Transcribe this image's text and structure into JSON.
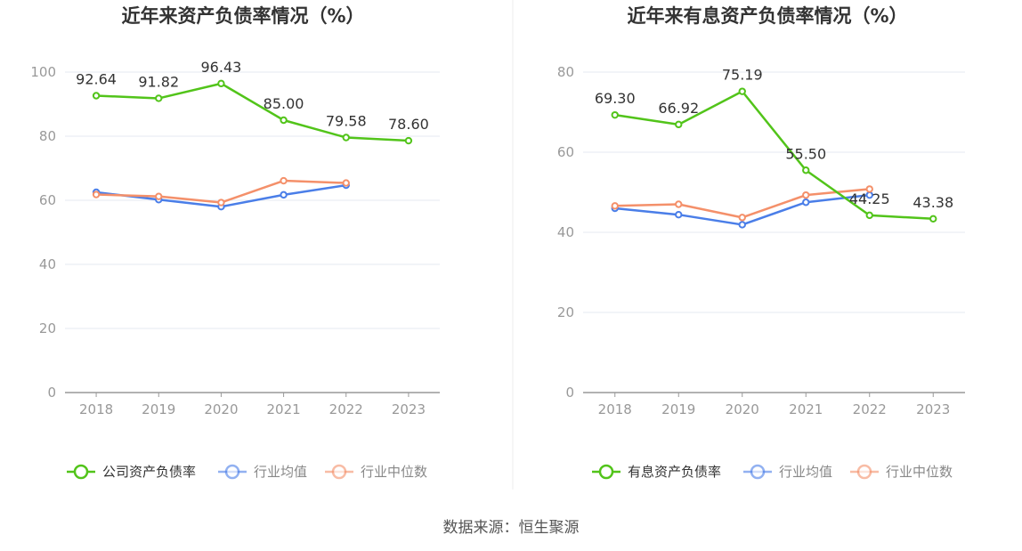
{
  "colors": {
    "company": "#52c41a",
    "average": "#4a7ee8",
    "median": "#f4906a",
    "grid": "#e6e8f2",
    "axis": "#999999"
  },
  "source": "数据来源：恒生聚源",
  "chart_data": [
    {
      "type": "line",
      "title": "近年来资产负债率情况（%）",
      "categories": [
        "2018",
        "2019",
        "2020",
        "2021",
        "2022",
        "2023"
      ],
      "ylim": [
        0,
        100
      ],
      "yticks": [
        0,
        20,
        40,
        60,
        80,
        100
      ],
      "grid": true,
      "legend_position": "bottom",
      "series": [
        {
          "name": "公司资产负债率",
          "color_key": "company",
          "values": [
            92.64,
            91.82,
            96.43,
            85.0,
            79.58,
            78.6
          ],
          "labels": [
            "92.64",
            "91.82",
            "96.43",
            "85.00",
            "79.58",
            "78.60"
          ]
        },
        {
          "name": "行业均值",
          "color_key": "average",
          "values": [
            62.5,
            60.2,
            58.0,
            61.7,
            64.7,
            null
          ]
        },
        {
          "name": "行业中位数",
          "color_key": "median",
          "values": [
            61.8,
            61.2,
            59.3,
            66.1,
            65.4,
            null
          ]
        }
      ]
    },
    {
      "type": "line",
      "title": "近年来有息资产负债率情况（%）",
      "categories": [
        "2018",
        "2019",
        "2020",
        "2021",
        "2022",
        "2023"
      ],
      "ylim": [
        0,
        80
      ],
      "yticks": [
        0,
        20,
        40,
        60,
        80
      ],
      "grid": true,
      "legend_position": "bottom",
      "series": [
        {
          "name": "有息资产负债率",
          "color_key": "company",
          "values": [
            69.3,
            66.92,
            75.19,
            55.5,
            44.25,
            43.38
          ],
          "labels": [
            "69.30",
            "66.92",
            "75.19",
            "55.50",
            "44.25",
            "43.38"
          ]
        },
        {
          "name": "行业均值",
          "color_key": "average",
          "values": [
            46.0,
            44.4,
            41.9,
            47.5,
            49.3,
            null
          ]
        },
        {
          "name": "行业中位数",
          "color_key": "median",
          "values": [
            46.6,
            47.0,
            43.7,
            49.3,
            50.8,
            null
          ]
        }
      ]
    }
  ]
}
